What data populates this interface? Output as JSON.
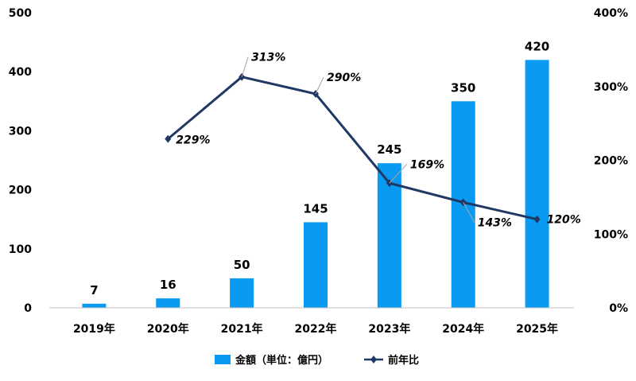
{
  "chart_data": {
    "type": "bar",
    "categories": [
      "2019年",
      "2020年",
      "2021年",
      "2022年",
      "2023年",
      "2024年",
      "2025年"
    ],
    "series": [
      {
        "name": "金額（単位：億円）",
        "type": "bar",
        "axis": "left",
        "values": [
          7,
          16,
          50,
          145,
          245,
          350,
          420
        ],
        "color": "#0B9AF2",
        "data_labels": [
          "7",
          "16",
          "50",
          "145",
          "245",
          "350",
          "420"
        ]
      },
      {
        "name": "前年比",
        "type": "line",
        "axis": "right",
        "values": [
          null,
          229,
          313,
          290,
          169,
          143,
          120
        ],
        "color": "#1F3864",
        "marker": "diamond",
        "data_labels": [
          null,
          "229%",
          "313%",
          "290%",
          "169%",
          "143%",
          "120%"
        ]
      }
    ],
    "y_left": {
      "ylim": [
        0,
        500
      ],
      "ticks": [
        "0",
        "100",
        "200",
        "300",
        "400",
        "500"
      ]
    },
    "y_right": {
      "ylim": [
        0,
        400
      ],
      "ticks": [
        "0%",
        "100%",
        "200%",
        "300%",
        "400%"
      ]
    },
    "title": "",
    "xlabel": "",
    "ylabel": "",
    "grid": false,
    "legend": {
      "position": "bottom",
      "entries": [
        "金額（単位：億円）",
        "前年比"
      ]
    }
  }
}
